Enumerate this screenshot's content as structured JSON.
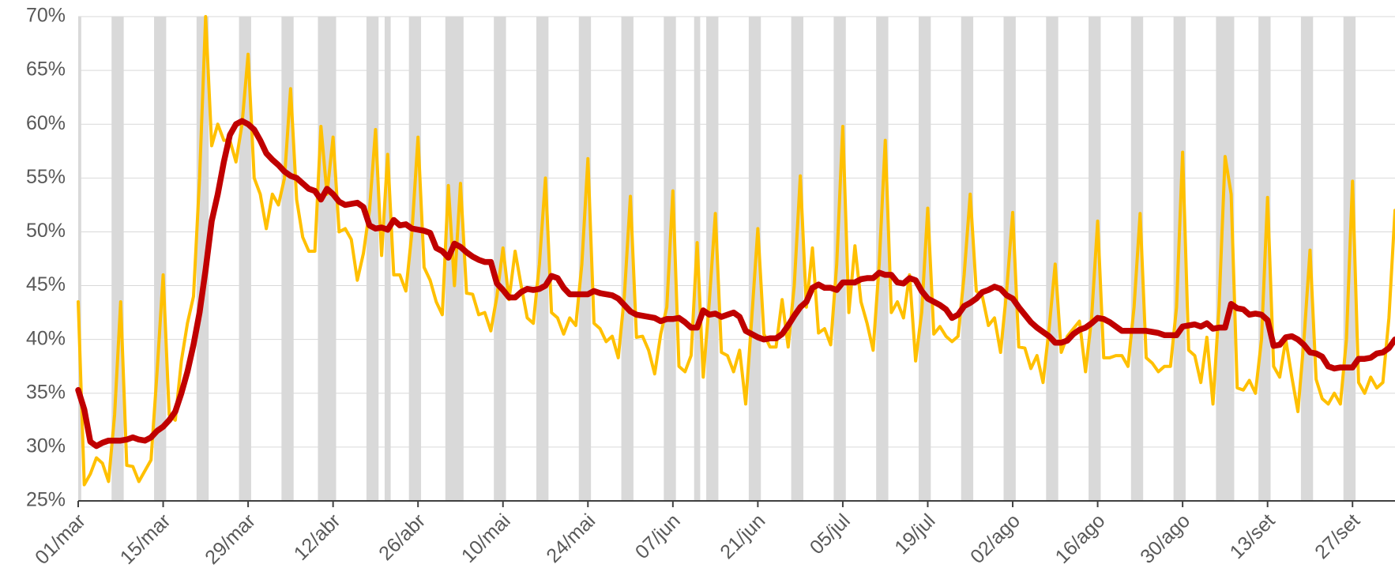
{
  "chart_data": {
    "type": "line",
    "categories": [
      "01/mar",
      null,
      null,
      null,
      null,
      null,
      null,
      null,
      null,
      null,
      null,
      null,
      null,
      null,
      "15/mar",
      null,
      null,
      null,
      null,
      null,
      null,
      null,
      null,
      null,
      null,
      null,
      null,
      null,
      "29/mar",
      null,
      null,
      null,
      null,
      null,
      null,
      null,
      null,
      null,
      null,
      null,
      null,
      null,
      "12/abr",
      null,
      null,
      null,
      null,
      null,
      null,
      null,
      null,
      null,
      null,
      null,
      null,
      null,
      "26/abr",
      null,
      null,
      null,
      null,
      null,
      null,
      null,
      null,
      null,
      null,
      null,
      null,
      null,
      "10/mai",
      null,
      null,
      null,
      null,
      null,
      null,
      null,
      null,
      null,
      null,
      null,
      null,
      null,
      "24/mai",
      null,
      null,
      null,
      null,
      null,
      null,
      null,
      null,
      null,
      null,
      null,
      null,
      null,
      "07/jun",
      null,
      null,
      null,
      null,
      null,
      null,
      null,
      null,
      null,
      null,
      null,
      null,
      null,
      "21/jun",
      null,
      null,
      null,
      null,
      null,
      null,
      null,
      null,
      null,
      null,
      null,
      null,
      null,
      "05/jul",
      null,
      null,
      null,
      null,
      null,
      null,
      null,
      null,
      null,
      null,
      null,
      null,
      null,
      "19/jul",
      null,
      null,
      null,
      null,
      null,
      null,
      null,
      null,
      null,
      null,
      null,
      null,
      null,
      "02/ago",
      null,
      null,
      null,
      null,
      null,
      null,
      null,
      null,
      null,
      null,
      null,
      null,
      null,
      "16/ago",
      null,
      null,
      null,
      null,
      null,
      null,
      null,
      null,
      null,
      null,
      null,
      null,
      null,
      "30/ago",
      null,
      null,
      null,
      null,
      null,
      null,
      null,
      null,
      null,
      null,
      null,
      null,
      null,
      "13/set",
      null,
      null,
      null,
      null,
      null,
      null,
      null,
      null,
      null,
      null,
      null,
      null,
      null,
      "27/set",
      null,
      null,
      null,
      null,
      null,
      null,
      null
    ],
    "series": [
      {
        "color": "#FFC000",
        "values": [
          43.5,
          26.5,
          27.5,
          29,
          28.5,
          26.8,
          33,
          43.5,
          28.3,
          28.2,
          26.8,
          27.8,
          28.8,
          37,
          46,
          33,
          32.5,
          38,
          41.5,
          44,
          55,
          70,
          58,
          60,
          58.5,
          58.5,
          56.5,
          60,
          66.5,
          55,
          53.5,
          50.3,
          53.5,
          52.5,
          55,
          63.3,
          53,
          49.5,
          48.2,
          48.2,
          59.8,
          53.5,
          58.8,
          50,
          50.3,
          49.3,
          45.5,
          48,
          52,
          59.5,
          47.8,
          57.2,
          46,
          46,
          44.5,
          50,
          58.8,
          46.7,
          45.5,
          43.5,
          42.3,
          54.3,
          45,
          54.5,
          44.3,
          44.2,
          42.3,
          42.5,
          40.8,
          44,
          48.5,
          43.7,
          48.2,
          45,
          42,
          41.5,
          47,
          55,
          42.5,
          42,
          40.5,
          42,
          41.3,
          47,
          56.8,
          41.5,
          41,
          39.8,
          40.3,
          38.3,
          44,
          53.3,
          40.2,
          40.3,
          39,
          36.8,
          40.5,
          43,
          53.8,
          37.5,
          37,
          38.5,
          49,
          36.5,
          43.5,
          51.7,
          38.8,
          38.5,
          37,
          39,
          34,
          42,
          50.3,
          40.5,
          39.3,
          39.3,
          43.7,
          39.3,
          45,
          55.2,
          43,
          48.5,
          40.6,
          41,
          39.5,
          47,
          59.8,
          42.5,
          48.7,
          43.5,
          41.5,
          39,
          47,
          58.5,
          42.5,
          43.5,
          42,
          46,
          38,
          42.5,
          52.2,
          40.5,
          41.2,
          40.3,
          39.8,
          40.3,
          46,
          53.5,
          44.5,
          44,
          41.3,
          42,
          38.8,
          44.5,
          51.8,
          39.3,
          39.2,
          37.3,
          38.5,
          36,
          41,
          47,
          38.8,
          40.3,
          41,
          41.7,
          37,
          42,
          51,
          38.3,
          38.3,
          38.5,
          38.5,
          37.5,
          43,
          51.7,
          38.3,
          37.8,
          37,
          37.5,
          37.5,
          43,
          57.4,
          39,
          38.5,
          36,
          40.2,
          34,
          43,
          57,
          53.5,
          35.5,
          35.3,
          36.2,
          35,
          40,
          53.2,
          37.5,
          36.5,
          40,
          36.5,
          33.3,
          40,
          48.3,
          36.3,
          34.5,
          34,
          35,
          34,
          40,
          54.7,
          36,
          35,
          36.5,
          35.5,
          36,
          42,
          52
        ]
      },
      {
        "color": "#C00000",
        "values": [
          35.3,
          33.5,
          30.5,
          30.1,
          30.4,
          30.6,
          30.6,
          30.6,
          30.7,
          30.9,
          30.7,
          30.6,
          30.9,
          31.5,
          31.9,
          32.5,
          33.3,
          35,
          37,
          39.5,
          42.5,
          46.5,
          51,
          53.5,
          56.5,
          59,
          60,
          60.3,
          60,
          59.5,
          58.5,
          57.3,
          56.7,
          56.2,
          55.6,
          55.2,
          55,
          54.5,
          54,
          53.8,
          53,
          54,
          53.5,
          52.8,
          52.5,
          52.6,
          52.7,
          52.3,
          50.6,
          50.3,
          50.4,
          50.2,
          51.1,
          50.6,
          50.7,
          50.3,
          50.2,
          50.1,
          49.9,
          48.5,
          48.2,
          47.6,
          48.9,
          48.6,
          48.1,
          47.7,
          47.4,
          47.2,
          47.2,
          45.2,
          44.6,
          43.9,
          43.9,
          44.4,
          44.7,
          44.6,
          44.7,
          45,
          45.9,
          45.7,
          44.8,
          44.2,
          44.2,
          44.2,
          44.2,
          44.5,
          44.3,
          44.2,
          44.1,
          43.8,
          43.2,
          42.6,
          42.3,
          42.2,
          42.1,
          42,
          41.7,
          41.9,
          41.9,
          42,
          41.6,
          41.1,
          41.1,
          42.7,
          42.3,
          42.4,
          42.1,
          42.3,
          42.5,
          42.1,
          40.8,
          40.5,
          40.2,
          40,
          40.1,
          40.1,
          40.5,
          41.3,
          42.2,
          43,
          43.5,
          44.8,
          45.1,
          44.8,
          44.8,
          44.6,
          45.3,
          45.3,
          45.3,
          45.6,
          45.7,
          45.7,
          46.2,
          46,
          46,
          45.3,
          45.2,
          45.7,
          45.5,
          44.5,
          43.8,
          43.5,
          43.2,
          42.8,
          42,
          42.3,
          43.1,
          43.4,
          43.8,
          44.4,
          44.6,
          44.9,
          44.7,
          44.1,
          43.8,
          43,
          42.3,
          41.6,
          41.1,
          40.7,
          40.3,
          39.7,
          39.7,
          39.9,
          40.5,
          40.9,
          41.1,
          41.5,
          42,
          41.9,
          41.6,
          41.2,
          40.8,
          40.8,
          40.8,
          40.8,
          40.8,
          40.7,
          40.6,
          40.4,
          40.4,
          40.4,
          41.2,
          41.3,
          41.4,
          41.2,
          41.5,
          41,
          41.1,
          41.1,
          43.3,
          42.9,
          42.8,
          42.3,
          42.4,
          42.3,
          41.8,
          39.4,
          39.5,
          40.2,
          40.3,
          40,
          39.5,
          38.8,
          38.7,
          38.4,
          37.5,
          37.3,
          37.4,
          37.4,
          37.4,
          38.2,
          38.2,
          38.3,
          38.7,
          38.8,
          39.2,
          40
        ]
      }
    ],
    "shaded_ranges": [
      [
        0,
        0
      ],
      [
        6,
        7
      ],
      [
        13,
        14
      ],
      [
        20,
        21
      ],
      [
        27,
        28
      ],
      [
        34,
        35
      ],
      [
        40,
        42
      ],
      [
        48,
        49
      ],
      [
        51,
        51
      ],
      [
        55,
        56
      ],
      [
        61,
        63
      ],
      [
        69,
        70
      ],
      [
        76,
        77
      ],
      [
        83,
        84
      ],
      [
        90,
        91
      ],
      [
        97,
        98
      ],
      [
        102,
        102
      ],
      [
        104,
        105
      ],
      [
        111,
        112
      ],
      [
        118,
        119
      ],
      [
        125,
        126
      ],
      [
        132,
        133
      ],
      [
        139,
        140
      ],
      [
        146,
        147
      ],
      [
        153,
        154
      ],
      [
        160,
        161
      ],
      [
        167,
        168
      ],
      [
        174,
        175
      ],
      [
        181,
        182
      ],
      [
        188,
        190
      ],
      [
        195,
        196
      ],
      [
        202,
        203
      ],
      [
        209,
        210
      ]
    ],
    "shade_color": "#D9D9D9",
    "ylim": [
      25,
      70
    ],
    "yticks": [
      {
        "value": 25,
        "label": "25%"
      },
      {
        "value": 30,
        "label": "30%"
      },
      {
        "value": 35,
        "label": "35%"
      },
      {
        "value": 40,
        "label": "40%"
      },
      {
        "value": 45,
        "label": "45%"
      },
      {
        "value": 50,
        "label": "50%"
      },
      {
        "value": 55,
        "label": "55%"
      },
      {
        "value": 60,
        "label": "60%"
      },
      {
        "value": 65,
        "label": "65%"
      },
      {
        "value": 70,
        "label": "70%"
      }
    ],
    "grid": true
  }
}
